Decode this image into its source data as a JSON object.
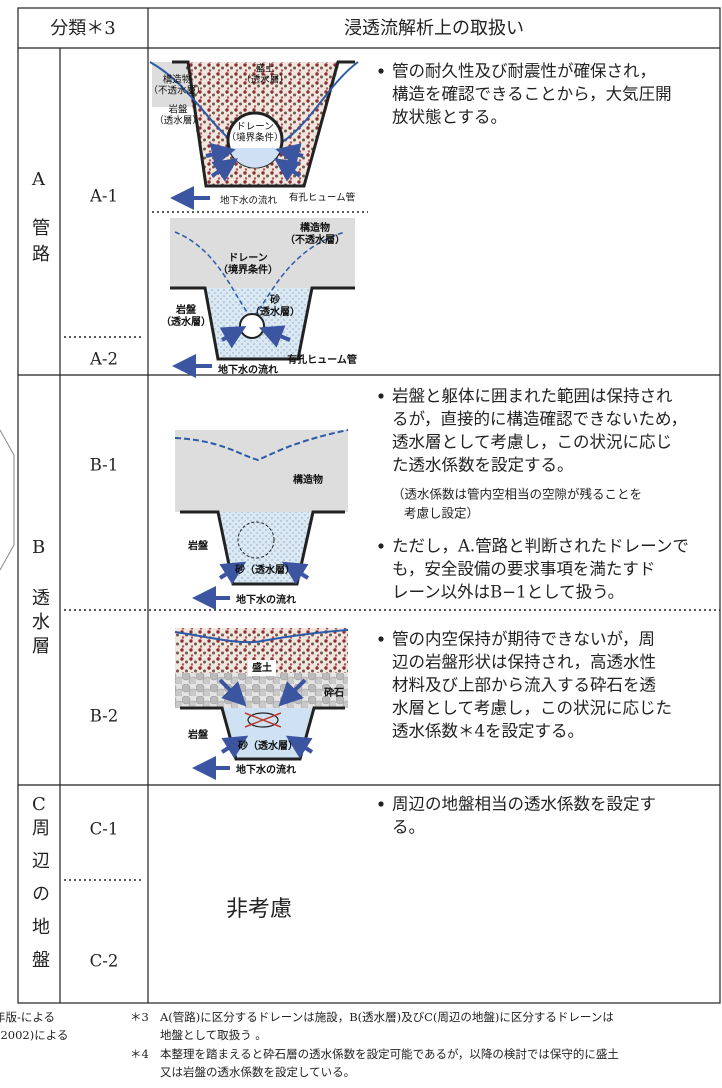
{
  "left_fragments": [
    "年版-による",
    "(2002)による"
  ],
  "header": {
    "classification": "分類＊3",
    "treatment": "浸透流解析上の取扱い"
  },
  "rows": [
    {
      "code": "A",
      "name": "管路",
      "subcategories": [
        "A-1",
        "A-2"
      ],
      "diagrams": [
        {
          "labels": [
            "構造物",
            "（不透水層）",
            "盛土",
            "（透水層）",
            "岩盤",
            "（透水層）",
            "ドレーン",
            "（境界条件）",
            "有孔ヒューム管",
            "地下水の流れ"
          ]
        },
        {
          "labels": [
            "構造物",
            "（不透水層）",
            "ドレーン",
            "（境界条件）",
            "岩盤",
            "（透水層）",
            "砂",
            "（透水層）",
            "有孔ヒューム管",
            "地下水の流れ"
          ]
        }
      ],
      "treatment": [
        {
          "lines": [
            "管の耐久性及び耐震性が確保され，",
            "構造を確認できることから，大気圧開",
            "放状態とする。"
          ]
        }
      ]
    },
    {
      "code": "B",
      "name": "透水層",
      "subcategories": [
        "B-1",
        "B-2"
      ],
      "diagrams": [
        {
          "labels": [
            "構造物",
            "岩盤",
            "砂（透水層）",
            "地下水の流れ"
          ]
        },
        {
          "labels": [
            "盛土",
            "砕石",
            "岩盤",
            "砂（透水層）",
            "地下水の流れ"
          ]
        }
      ],
      "treatment": [
        {
          "lines": [
            "岩盤と躯体に囲まれた範囲は保持され",
            "るが，直接的に構造確認できないため，",
            "透水層として考慮し，この状況に応じ",
            "た透水係数を設定する。"
          ],
          "note": [
            "（透水係数は管内空相当の空隙が残ることを",
            "考慮し設定）"
          ]
        },
        {
          "lines": [
            "ただし，A.管路と判断されたドレーンで",
            "も，安全設備の要求事項を満たすド",
            "レーン以外はB−1として扱う。"
          ]
        },
        {
          "lines": [
            "管の内空保持が期待できないが，周",
            "辺の岩盤形状は保持され，高透水性",
            "材料及び上部から流入する砕石を透",
            "水層として考慮し，この状況に応じた",
            "透水係数＊4を設定する。"
          ]
        }
      ]
    },
    {
      "code": "C",
      "name": "周辺の地盤",
      "subcategories": [
        "C-1",
        "C-2"
      ],
      "diagram_text": "非考慮",
      "treatment": [
        {
          "lines": [
            "周辺の地盤相当の透水係数を設定す",
            "る。"
          ]
        }
      ]
    }
  ],
  "footnotes": [
    {
      "mark": "＊3",
      "lines": [
        "A(管路)に区分するドレーンは施設，B(透水層)及びC(周辺の地盤)に区分するドレーンは",
        "地盤として取扱う 。"
      ]
    },
    {
      "mark": "＊4",
      "lines": [
        "本整理を踏まえると砕石層の透水係数を設定可能であるが，以降の検討では保守的に盛土",
        "又は岩盤の透水係数を設定している。"
      ]
    }
  ]
}
